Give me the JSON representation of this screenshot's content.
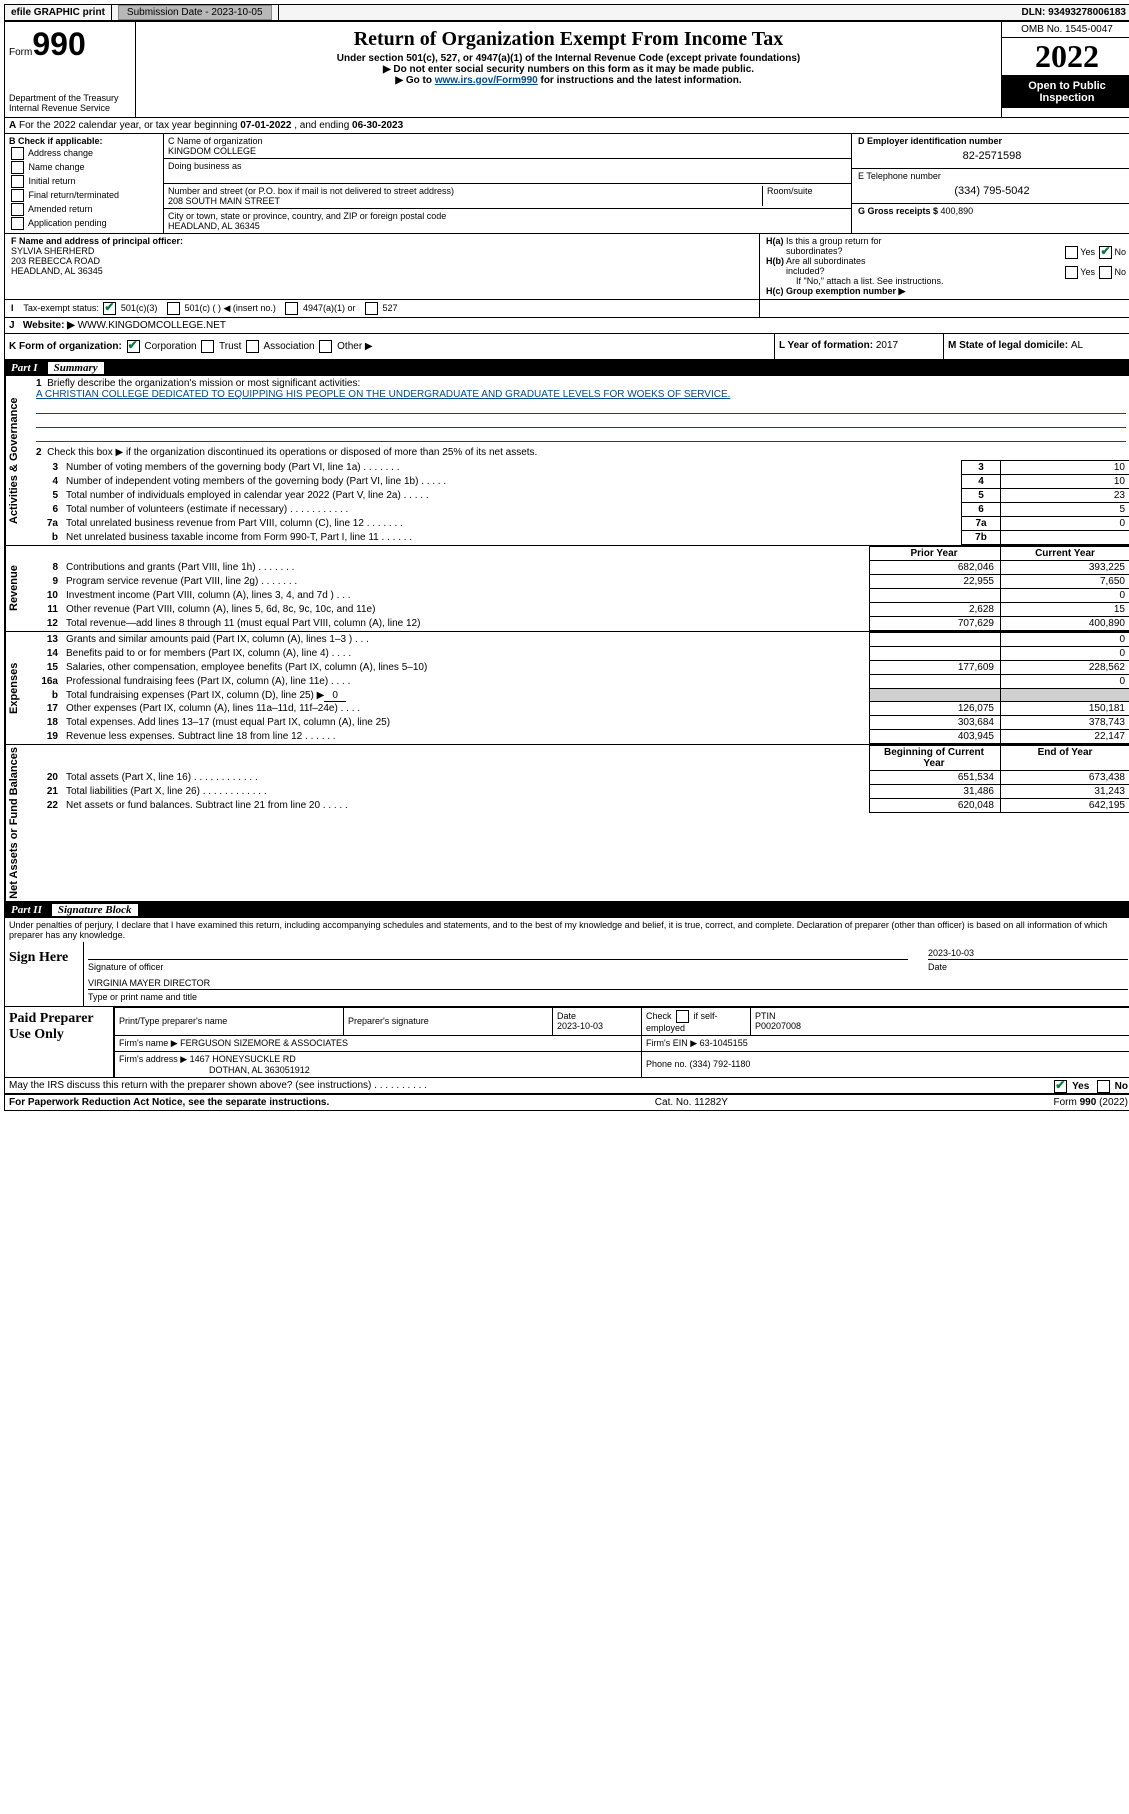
{
  "topbar": {
    "efile_label": "efile GRAPHIC print",
    "submission_label": "Submission Date - 2023-10-05",
    "dln_label": "DLN: 93493278006183"
  },
  "header": {
    "form_prefix": "Form",
    "form_number": "990",
    "title": "Return of Organization Exempt From Income Tax",
    "subtitle1": "Under section 501(c), 527, or 4947(a)(1) of the Internal Revenue Code (except private foundations)",
    "subtitle2": "Do not enter social security numbers on this form as it may be made public.",
    "subtitle3_pre": "Go to ",
    "subtitle3_link": "www.irs.gov/Form990",
    "subtitle3_post": " for instructions and the latest information.",
    "dept": "Department of the Treasury\nInternal Revenue Service",
    "omb": "OMB No. 1545-0047",
    "year": "2022",
    "inspect": "Open to Public Inspection"
  },
  "lineA": {
    "text_pre": "For the 2022 calendar year, or tax year beginning ",
    "begin": "07-01-2022",
    "mid": " , and ending ",
    "end": "06-30-2023"
  },
  "boxB": {
    "label": "B Check if applicable:",
    "opts": [
      "Address change",
      "Name change",
      "Initial return",
      "Final return/terminated",
      "Amended return",
      "Application pending"
    ]
  },
  "boxC": {
    "name_label": "C Name of organization",
    "name": "KINGDOM COLLEGE",
    "dba_label": "Doing business as",
    "addr_label": "Number and street (or P.O. box if mail is not delivered to street address)",
    "room_label": "Room/suite",
    "street": "208 SOUTH MAIN STREET",
    "city_label": "City or town, state or province, country, and ZIP or foreign postal code",
    "city": "HEADLAND, AL  36345"
  },
  "boxD": {
    "ein_label": "D Employer identification number",
    "ein": "82-2571598",
    "phone_label": "E Telephone number",
    "phone": "(334) 795-5042",
    "gross_label": "G Gross receipts $ ",
    "gross": "400,890"
  },
  "boxF": {
    "label": "F Name and address of principal officer:",
    "name": "SYLVIA SHERHERD",
    "addr1": "203 REBECCA ROAD",
    "addr2": "HEADLAND, AL  36345"
  },
  "boxH": {
    "a_label": "H(a)  Is this a group return for subordinates?",
    "b_label": "H(b)  Are all subordinates included?",
    "b_note": "If \"No,\" attach a list. See instructions.",
    "c_label": "H(c)  Group exemption number ▶",
    "yes": "Yes",
    "no": "No"
  },
  "rowI": {
    "label": "Tax-exempt status:",
    "o1": "501(c)(3)",
    "o2": "501(c) (  ) ◀ (insert no.)",
    "o3": "4947(a)(1) or",
    "o4": "527"
  },
  "rowJ": {
    "label": "Website: ▶",
    "value": "WWW.KINGDOMCOLLEGE.NET"
  },
  "rowK": {
    "label": "K Form of organization:",
    "o1": "Corporation",
    "o2": "Trust",
    "o3": "Association",
    "o4": "Other ▶"
  },
  "rowL": {
    "label": "L Year of formation: ",
    "value": "2017"
  },
  "rowM": {
    "label": "M State of legal domicile: ",
    "value": "AL"
  },
  "part1": {
    "num": "Part I",
    "title": "Summary",
    "l1_label": "Briefly describe the organization's mission or most significant activities:",
    "l1_text": "A CHRISTIAN COLLEGE DEDICATED TO EQUIPPING HIS PEOPLE ON THE UNDERGRADUATE AND GRADUATE LEVELS FOR WOEKS OF SERVICE.",
    "l2_label": "Check this box ▶       if the organization discontinued its operations or disposed of more than 25% of its net assets.",
    "vlabels": {
      "gov": "Activities & Governance",
      "rev": "Revenue",
      "exp": "Expenses",
      "net": "Net Assets or Fund Balances"
    },
    "cols": {
      "prior": "Prior Year",
      "current": "Current Year",
      "begin": "Beginning of Current Year",
      "end": "End of Year"
    },
    "gov_lines": [
      {
        "n": "3",
        "d": "Number of voting members of the governing body (Part VI, line 1a)  .    .    .    .    .    .    .",
        "box": "3",
        "v": "10"
      },
      {
        "n": "4",
        "d": "Number of independent voting members of the governing body (Part VI, line 1b)  .    .    .    .    .",
        "box": "4",
        "v": "10"
      },
      {
        "n": "5",
        "d": "Total number of individuals employed in calendar year 2022 (Part V, line 2a)   .    .    .    .    .",
        "box": "5",
        "v": "23"
      },
      {
        "n": "6",
        "d": "Total number of volunteers (estimate if necessary)   .    .    .    .    .    .    .    .    .    .    .",
        "box": "6",
        "v": "5"
      },
      {
        "n": "7a",
        "d": "Total unrelated business revenue from Part VIII, column (C), line 12   .    .    .    .    .    .    .",
        "box": "7a",
        "v": "0"
      },
      {
        "n": "b",
        "d": "Net unrelated business taxable income from Form 990-T, Part I, line 11   .    .    .    .    .    .",
        "box": "7b",
        "v": ""
      }
    ],
    "rev_lines": [
      {
        "n": "8",
        "d": "Contributions and grants (Part VIII, line 1h)    .    .    .    .    .    .    .",
        "p": "682,046",
        "c": "393,225"
      },
      {
        "n": "9",
        "d": "Program service revenue (Part VIII, line 2g)   .    .    .    .    .    .    .",
        "p": "22,955",
        "c": "7,650"
      },
      {
        "n": "10",
        "d": "Investment income (Part VIII, column (A), lines 3, 4, and 7d )    .    .    .",
        "p": "",
        "c": "0"
      },
      {
        "n": "11",
        "d": "Other revenue (Part VIII, column (A), lines 5, 6d, 8c, 9c, 10c, and 11e)",
        "p": "2,628",
        "c": "15"
      },
      {
        "n": "12",
        "d": "Total revenue—add lines 8 through 11 (must equal Part VIII, column (A), line 12)",
        "p": "707,629",
        "c": "400,890"
      }
    ],
    "exp_lines": [
      {
        "n": "13",
        "d": "Grants and similar amounts paid (Part IX, column (A), lines 1–3 )  .    .    .",
        "p": "",
        "c": "0"
      },
      {
        "n": "14",
        "d": "Benefits paid to or for members (Part IX, column (A), line 4)  .    .    .    .",
        "p": "",
        "c": "0"
      },
      {
        "n": "15",
        "d": "Salaries, other compensation, employee benefits (Part IX, column (A), lines 5–10)",
        "p": "177,609",
        "c": "228,562"
      },
      {
        "n": "16a",
        "d": "Professional fundraising fees (Part IX, column (A), line 11e)   .    .    .    .",
        "p": "",
        "c": "0"
      }
    ],
    "l16b_pre": "Total fundraising expenses (Part IX, column (D), line 25) ▶",
    "l16b_val": "0",
    "exp_lines2": [
      {
        "n": "17",
        "d": "Other expenses (Part IX, column (A), lines 11a–11d, 11f–24e)   .    .    .    .",
        "p": "126,075",
        "c": "150,181"
      },
      {
        "n": "18",
        "d": "Total expenses. Add lines 13–17 (must equal Part IX, column (A), line 25)",
        "p": "303,684",
        "c": "378,743"
      },
      {
        "n": "19",
        "d": "Revenue less expenses. Subtract line 18 from line 12   .    .    .    .    .    .",
        "p": "403,945",
        "c": "22,147"
      }
    ],
    "net_lines": [
      {
        "n": "20",
        "d": "Total assets (Part X, line 16)   .    .    .    .    .    .    .    .    .    .    .    .",
        "p": "651,534",
        "c": "673,438"
      },
      {
        "n": "21",
        "d": "Total liabilities (Part X, line 26)   .    .    .    .    .    .    .    .    .    .    .    .",
        "p": "31,486",
        "c": "31,243"
      },
      {
        "n": "22",
        "d": "Net assets or fund balances. Subtract line 21 from line 20   .    .    .    .    .",
        "p": "620,048",
        "c": "642,195"
      }
    ]
  },
  "part2": {
    "num": "Part II",
    "title": "Signature Block",
    "penalty": "Under penalties of perjury, I declare that I have examined this return, including accompanying schedules and statements, and to the best of my knowledge and belief, it is true, correct, and complete. Declaration of preparer (other than officer) is based on all information of which preparer has any knowledge.",
    "sign_here": "Sign Here",
    "sig_officer": "Signature of officer",
    "date_label": "Date",
    "sig_date": "2023-10-03",
    "officer_name": "VIRGINIA MAYER  DIRECTOR",
    "type_name": "Type or print name and title",
    "paid_label": "Paid Preparer Use Only",
    "prep_name_label": "Print/Type preparer's name",
    "prep_sig_label": "Preparer's signature",
    "prep_date": "2023-10-03",
    "check_if": "Check        if self-employed",
    "ptin_label": "PTIN",
    "ptin": "P00207008",
    "firm_name_label": "Firm's name    ▶",
    "firm_name": "FERGUSON SIZEMORE & ASSOCIATES",
    "firm_ein_label": "Firm's EIN ▶",
    "firm_ein": "63-1045155",
    "firm_addr_label": "Firm's address ▶",
    "firm_addr1": "1467 HONEYSUCKLE RD",
    "firm_addr2": "DOTHAN, AL  363051912",
    "firm_phone_label": "Phone no. ",
    "firm_phone": "(334) 792-1180",
    "discuss": "May the IRS discuss this return with the preparer shown above? (see instructions)   .    .    .    .    .    .    .    .    .    .",
    "footer_left": "For Paperwork Reduction Act Notice, see the separate instructions.",
    "footer_mid": "Cat. No. 11282Y",
    "footer_right_pre": "Form ",
    "footer_right_bold": "990",
    "footer_right_post": " (2022)"
  }
}
